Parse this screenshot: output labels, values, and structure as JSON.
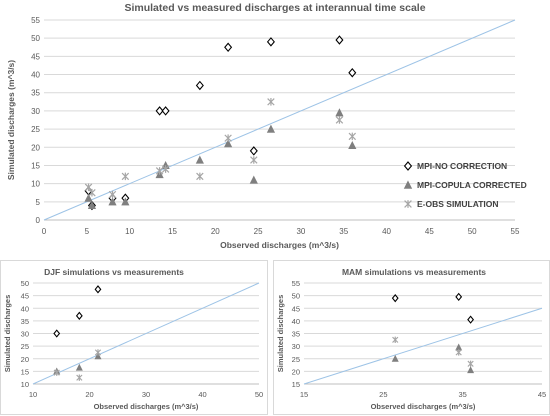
{
  "chart_data": [
    {
      "id": "main",
      "type": "scatter",
      "title": "Simulated vs measured discharges at interannual time scale",
      "xlabel": "Observed discharges (m^3/s)",
      "ylabel": "Simulated discharges (m^3/s)",
      "xlim": [
        0,
        55
      ],
      "ylim": [
        0,
        55
      ],
      "xticks": [
        "0",
        "5",
        "10",
        "15",
        "20",
        "25",
        "30",
        "35",
        "40",
        "45",
        "50",
        "55"
      ],
      "yticks": [
        "0",
        "5",
        "10",
        "15",
        "20",
        "25",
        "30",
        "35",
        "40",
        "45",
        "50",
        "55"
      ],
      "grid": "horizontal",
      "legend_position": "right",
      "reference_line": "1:1",
      "series": [
        {
          "name": "MPI-NO CORRECTION",
          "marker": "diamond",
          "color": "#000000",
          "points": [
            [
              5.2,
              8
            ],
            [
              5.6,
              4
            ],
            [
              8,
              6
            ],
            [
              9.5,
              6
            ],
            [
              13.5,
              30
            ],
            [
              14.2,
              30
            ],
            [
              18.2,
              37
            ],
            [
              21.5,
              47.5
            ],
            [
              24.5,
              19
            ],
            [
              26.5,
              49
            ],
            [
              34.5,
              49.5
            ],
            [
              36,
              40.5
            ]
          ]
        },
        {
          "name": "MPI-COPULA CORRECTED",
          "marker": "triangle",
          "color": "#7f7f7f",
          "points": [
            [
              5.2,
              6
            ],
            [
              5.6,
              4
            ],
            [
              8,
              5
            ],
            [
              9.5,
              5
            ],
            [
              13.5,
              12.5
            ],
            [
              14.2,
              15
            ],
            [
              18.2,
              16.5
            ],
            [
              21.5,
              21
            ],
            [
              24.5,
              11
            ],
            [
              26.5,
              25
            ],
            [
              34.5,
              29.5
            ],
            [
              36,
              20.5
            ]
          ]
        },
        {
          "name": "E-OBS SIMULATION",
          "marker": "x",
          "color": "#a6a6a6",
          "points": [
            [
              5.2,
              9
            ],
            [
              5.6,
              7.5
            ],
            [
              8,
              7
            ],
            [
              9.5,
              12
            ],
            [
              13.5,
              13.5
            ],
            [
              14.2,
              14
            ],
            [
              18.2,
              12
            ],
            [
              21.5,
              22.5
            ],
            [
              24.5,
              16.5
            ],
            [
              26.5,
              32.5
            ],
            [
              34.5,
              27.5
            ],
            [
              36,
              23
            ]
          ]
        }
      ]
    },
    {
      "id": "djf",
      "type": "scatter",
      "title": "DJF simulations vs measurements",
      "xlabel": "Observed discharges (m^3/s)",
      "ylabel": "Simulated discharges",
      "xlim": [
        10,
        50
      ],
      "ylim": [
        10,
        50
      ],
      "xticks": [
        "10",
        "20",
        "30",
        "40",
        "50"
      ],
      "yticks": [
        "10",
        "15",
        "20",
        "25",
        "30",
        "35",
        "40",
        "45",
        "50"
      ],
      "grid": "horizontal",
      "reference_line": "1:1",
      "series": [
        {
          "marker": "diamond",
          "color": "#000000",
          "points": [
            [
              14.2,
              30
            ],
            [
              18.2,
              37
            ],
            [
              21.5,
              47.5
            ]
          ]
        },
        {
          "marker": "triangle",
          "color": "#7f7f7f",
          "points": [
            [
              14.2,
              15
            ],
            [
              18.2,
              16.5
            ],
            [
              21.5,
              21
            ]
          ]
        },
        {
          "marker": "x",
          "color": "#a6a6a6",
          "points": [
            [
              14.2,
              14.5
            ],
            [
              18.2,
              12.5
            ],
            [
              21.5,
              22.5
            ]
          ]
        }
      ]
    },
    {
      "id": "mam",
      "type": "scatter",
      "title": "MAM simulations vs measurements",
      "xlabel": "Observed discharges (m^3/s)",
      "ylabel": "Simulated discharges",
      "xlim": [
        15,
        45
      ],
      "ylim": [
        15,
        55
      ],
      "xticks": [
        "15",
        "25",
        "35",
        "45"
      ],
      "yticks": [
        "15",
        "20",
        "25",
        "30",
        "35",
        "40",
        "45",
        "50",
        "55"
      ],
      "grid": "horizontal",
      "reference_line": "1:1",
      "series": [
        {
          "marker": "diamond",
          "color": "#000000",
          "points": [
            [
              26.5,
              49
            ],
            [
              34.5,
              49.5
            ],
            [
              36,
              40.5
            ]
          ]
        },
        {
          "marker": "triangle",
          "color": "#7f7f7f",
          "points": [
            [
              26.5,
              25
            ],
            [
              34.5,
              29.5
            ],
            [
              36,
              20.5
            ]
          ]
        },
        {
          "marker": "x",
          "color": "#a6a6a6",
          "points": [
            [
              26.5,
              32.5
            ],
            [
              34.5,
              27.5
            ],
            [
              36,
              23
            ]
          ]
        }
      ]
    }
  ]
}
